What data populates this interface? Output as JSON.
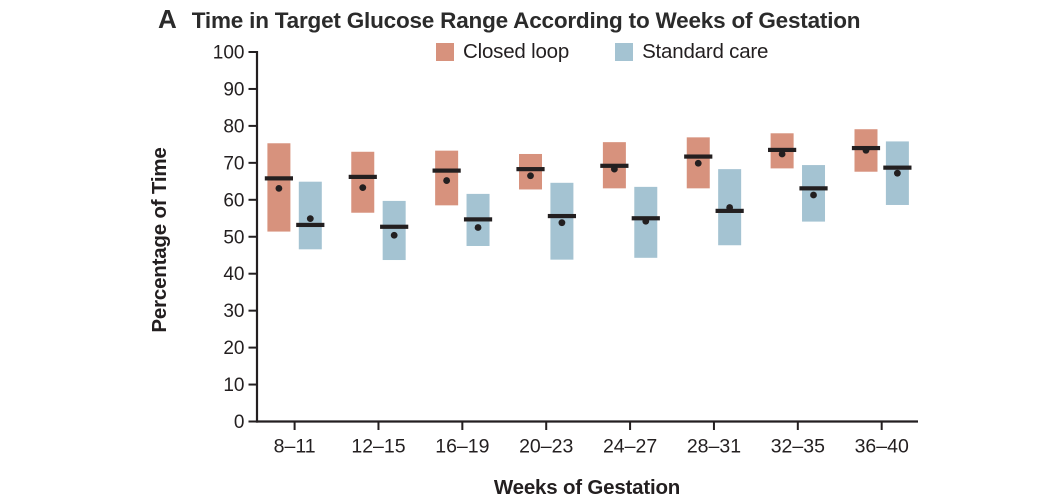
{
  "panel": {
    "label": "A",
    "title": "Time in Target Glucose Range According to Weeks of Gestation"
  },
  "legend": {
    "items": [
      {
        "label": "Closed loop",
        "color": "#d7927d"
      },
      {
        "label": "Standard care",
        "color": "#a4c3d2"
      }
    ]
  },
  "chart_data": {
    "type": "bar",
    "subtype": "range-bar-with-median-line-and-mean-dot",
    "title": "Time in Target Glucose Range According to Weeks of Gestation",
    "xlabel": "Weeks of Gestation",
    "ylabel": "Percentage of Time",
    "ylim": [
      0,
      100
    ],
    "yticks": [
      0,
      10,
      20,
      30,
      40,
      50,
      60,
      70,
      80,
      90,
      100
    ],
    "grid": false,
    "legend_position": "top-center",
    "axis_color": "#231f20",
    "marker_color": "#231f20",
    "categories": [
      "8–11",
      "12–15",
      "16–19",
      "20–23",
      "24–27",
      "28–31",
      "32–35",
      "36–40"
    ],
    "series": [
      {
        "name": "Closed loop",
        "color": "#d7927d",
        "bars": [
          {
            "low": 51.4,
            "high": 75.3,
            "median": 65.8,
            "mean": 63.1
          },
          {
            "low": 56.5,
            "high": 73.0,
            "median": 66.2,
            "mean": 63.3
          },
          {
            "low": 58.5,
            "high": 73.3,
            "median": 67.9,
            "mean": 65.2
          },
          {
            "low": 62.8,
            "high": 72.4,
            "median": 68.3,
            "mean": 66.5
          },
          {
            "low": 63.1,
            "high": 75.6,
            "median": 69.2,
            "mean": 68.3
          },
          {
            "low": 63.1,
            "high": 76.9,
            "median": 71.7,
            "mean": 69.9
          },
          {
            "low": 68.5,
            "high": 78.0,
            "median": 73.5,
            "mean": 72.4
          },
          {
            "low": 67.6,
            "high": 79.1,
            "median": 74.0,
            "mean": 73.4
          }
        ]
      },
      {
        "name": "Standard care",
        "color": "#a4c3d2",
        "bars": [
          {
            "low": 46.6,
            "high": 64.9,
            "median": 53.2,
            "mean": 54.9
          },
          {
            "low": 43.7,
            "high": 59.7,
            "median": 52.7,
            "mean": 50.4
          },
          {
            "low": 47.5,
            "high": 61.6,
            "median": 54.7,
            "mean": 52.5
          },
          {
            "low": 43.8,
            "high": 64.6,
            "median": 55.6,
            "mean": 53.8
          },
          {
            "low": 44.3,
            "high": 63.5,
            "median": 55.0,
            "mean": 54.2
          },
          {
            "low": 47.7,
            "high": 68.3,
            "median": 57.0,
            "mean": 57.9
          },
          {
            "low": 54.1,
            "high": 69.4,
            "median": 63.1,
            "mean": 61.3
          },
          {
            "low": 58.6,
            "high": 75.8,
            "median": 68.7,
            "mean": 67.2
          }
        ]
      }
    ]
  }
}
